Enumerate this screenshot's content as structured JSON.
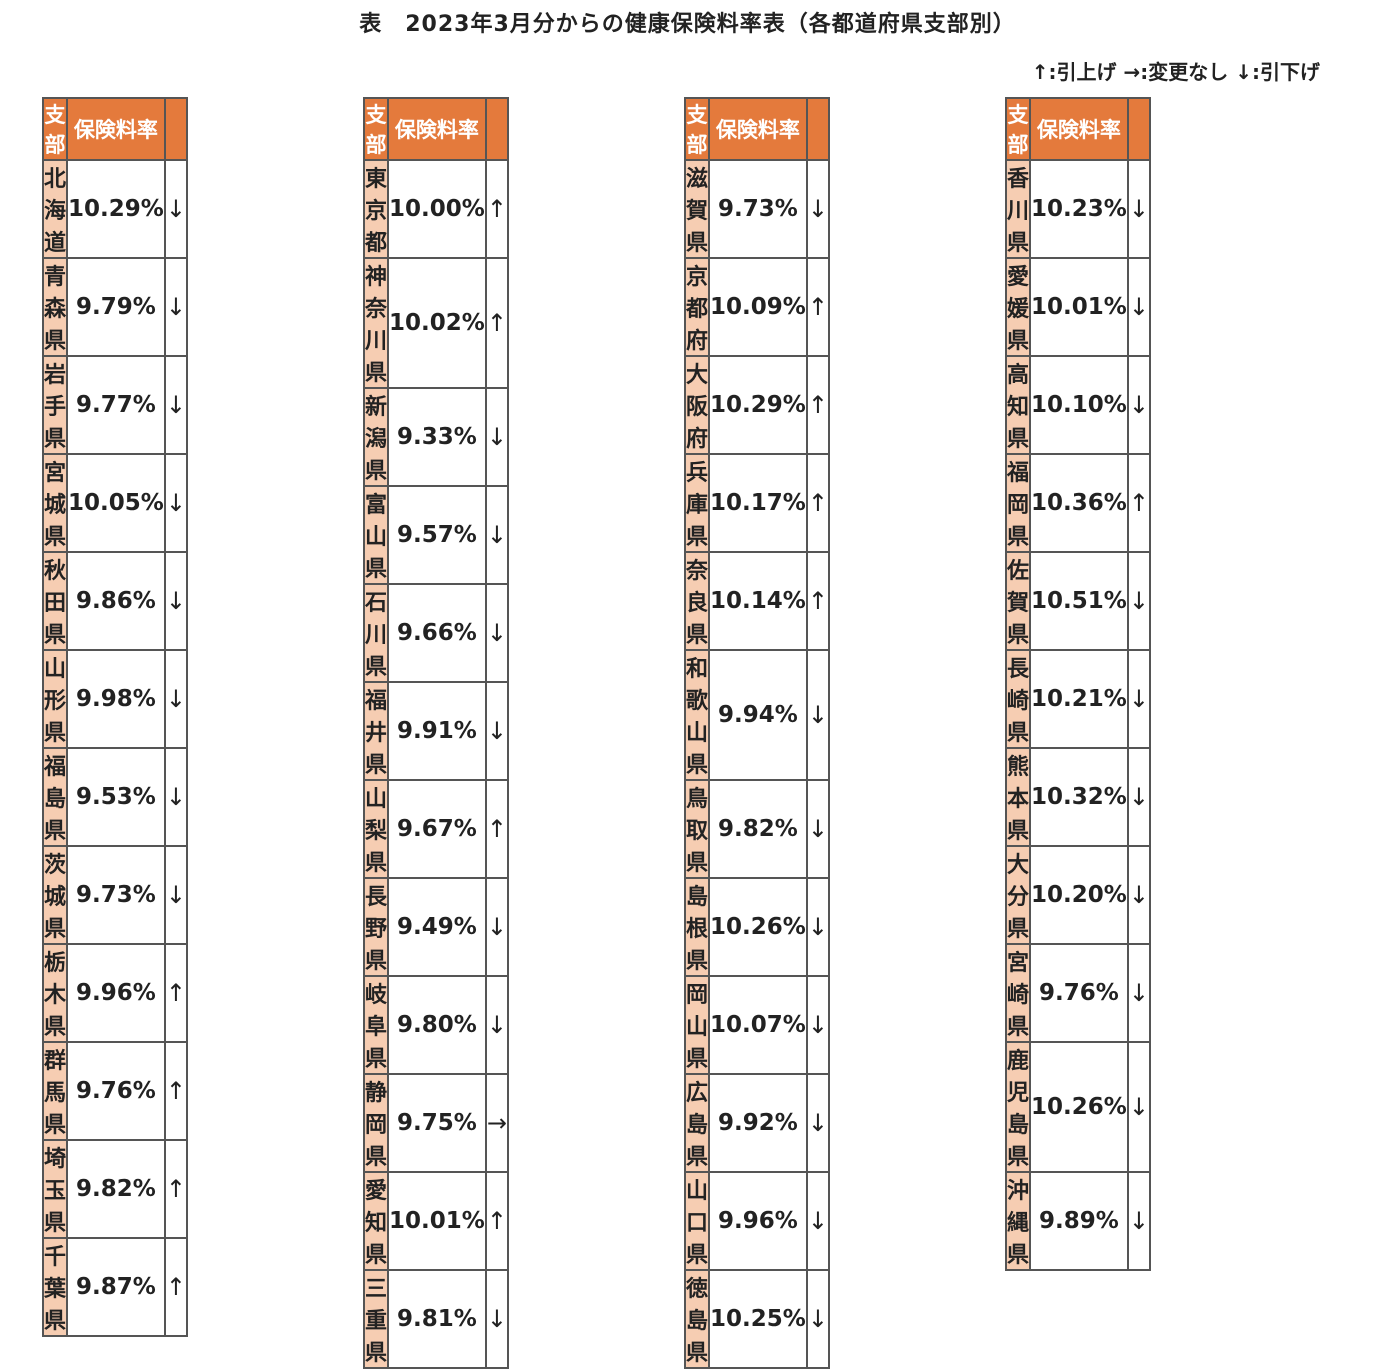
{
  "title": "表　2023年3月分からの健康保険料率表（各都道府県支部別）",
  "legend": "↑:引上げ →:変更なし ↓:引下げ",
  "headers": {
    "branch": "支部",
    "rate": "保険料率",
    "change": ""
  },
  "blocks": [
    {
      "rows": [
        {
          "name": "北海道",
          "rate": "10.29%",
          "arrow": "↓"
        },
        {
          "name": "青森県",
          "rate": "9.79%",
          "arrow": "↓"
        },
        {
          "name": "岩手県",
          "rate": "9.77%",
          "arrow": "↓"
        },
        {
          "name": "宮城県",
          "rate": "10.05%",
          "arrow": "↓"
        },
        {
          "name": "秋田県",
          "rate": "9.86%",
          "arrow": "↓"
        },
        {
          "name": "山形県",
          "rate": "9.98%",
          "arrow": "↓"
        },
        {
          "name": "福島県",
          "rate": "9.53%",
          "arrow": "↓"
        },
        {
          "name": "茨城県",
          "rate": "9.73%",
          "arrow": "↓"
        },
        {
          "name": "栃木県",
          "rate": "9.96%",
          "arrow": "↑"
        },
        {
          "name": "群馬県",
          "rate": "9.76%",
          "arrow": "↑"
        },
        {
          "name": "埼玉県",
          "rate": "9.82%",
          "arrow": "↑"
        },
        {
          "name": "千葉県",
          "rate": "9.87%",
          "arrow": "↑"
        }
      ]
    },
    {
      "rows": [
        {
          "name": "東京都",
          "rate": "10.00%",
          "arrow": "↑"
        },
        {
          "name": "神奈川県",
          "rate": "10.02%",
          "arrow": "↑"
        },
        {
          "name": "新潟県",
          "rate": "9.33%",
          "arrow": "↓"
        },
        {
          "name": "富山県",
          "rate": "9.57%",
          "arrow": "↓"
        },
        {
          "name": "石川県",
          "rate": "9.66%",
          "arrow": "↓"
        },
        {
          "name": "福井県",
          "rate": "9.91%",
          "arrow": "↓"
        },
        {
          "name": "山梨県",
          "rate": "9.67%",
          "arrow": "↑"
        },
        {
          "name": "長野県",
          "rate": "9.49%",
          "arrow": "↓"
        },
        {
          "name": "岐阜県",
          "rate": "9.80%",
          "arrow": "↓"
        },
        {
          "name": "静岡県",
          "rate": "9.75%",
          "arrow": "→"
        },
        {
          "name": "愛知県",
          "rate": "10.01%",
          "arrow": "↑"
        },
        {
          "name": "三重県",
          "rate": "9.81%",
          "arrow": "↓"
        }
      ]
    },
    {
      "rows": [
        {
          "name": "滋賀県",
          "rate": "9.73%",
          "arrow": "↓"
        },
        {
          "name": "京都府",
          "rate": "10.09%",
          "arrow": "↑"
        },
        {
          "name": "大阪府",
          "rate": "10.29%",
          "arrow": "↑"
        },
        {
          "name": "兵庫県",
          "rate": "10.17%",
          "arrow": "↑"
        },
        {
          "name": "奈良県",
          "rate": "10.14%",
          "arrow": "↑"
        },
        {
          "name": "和歌山県",
          "rate": "9.94%",
          "arrow": "↓"
        },
        {
          "name": "鳥取県",
          "rate": "9.82%",
          "arrow": "↓"
        },
        {
          "name": "島根県",
          "rate": "10.26%",
          "arrow": "↓"
        },
        {
          "name": "岡山県",
          "rate": "10.07%",
          "arrow": "↓"
        },
        {
          "name": "広島県",
          "rate": "9.92%",
          "arrow": "↓"
        },
        {
          "name": "山口県",
          "rate": "9.96%",
          "arrow": "↓"
        },
        {
          "name": "徳島県",
          "rate": "10.25%",
          "arrow": "↓"
        }
      ]
    },
    {
      "rows": [
        {
          "name": "香川県",
          "rate": "10.23%",
          "arrow": "↓"
        },
        {
          "name": "愛媛県",
          "rate": "10.01%",
          "arrow": "↓"
        },
        {
          "name": "高知県",
          "rate": "10.10%",
          "arrow": "↓"
        },
        {
          "name": "福岡県",
          "rate": "10.36%",
          "arrow": "↑"
        },
        {
          "name": "佐賀県",
          "rate": "10.51%",
          "arrow": "↓"
        },
        {
          "name": "長崎県",
          "rate": "10.21%",
          "arrow": "↓"
        },
        {
          "name": "熊本県",
          "rate": "10.32%",
          "arrow": "↓"
        },
        {
          "name": "大分県",
          "rate": "10.20%",
          "arrow": "↓"
        },
        {
          "name": "宮崎県",
          "rate": "9.76%",
          "arrow": "↓"
        },
        {
          "name": "鹿児島県",
          "rate": "10.26%",
          "arrow": "↓"
        },
        {
          "name": "沖縄県",
          "rate": "9.89%",
          "arrow": "↓"
        }
      ]
    }
  ]
}
